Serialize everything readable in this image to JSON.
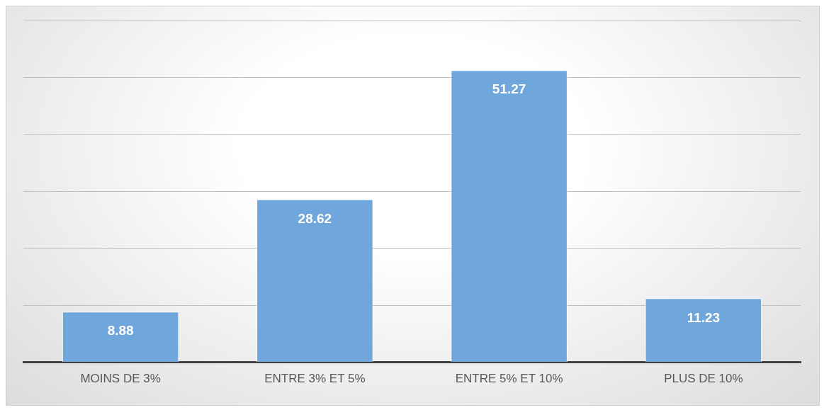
{
  "chart_data": {
    "type": "bar",
    "categories": [
      "MOINS DE 3%",
      "ENTRE 3% ET 5%",
      "ENTRE 5% ET 10%",
      "PLUS DE 10%"
    ],
    "values": [
      8.88,
      28.62,
      51.27,
      11.23
    ],
    "color": "#6fa7dc",
    "ylim": [
      0,
      60
    ],
    "tick_labels": "x",
    "grid": "y",
    "legend": false,
    "data_labels": true
  }
}
